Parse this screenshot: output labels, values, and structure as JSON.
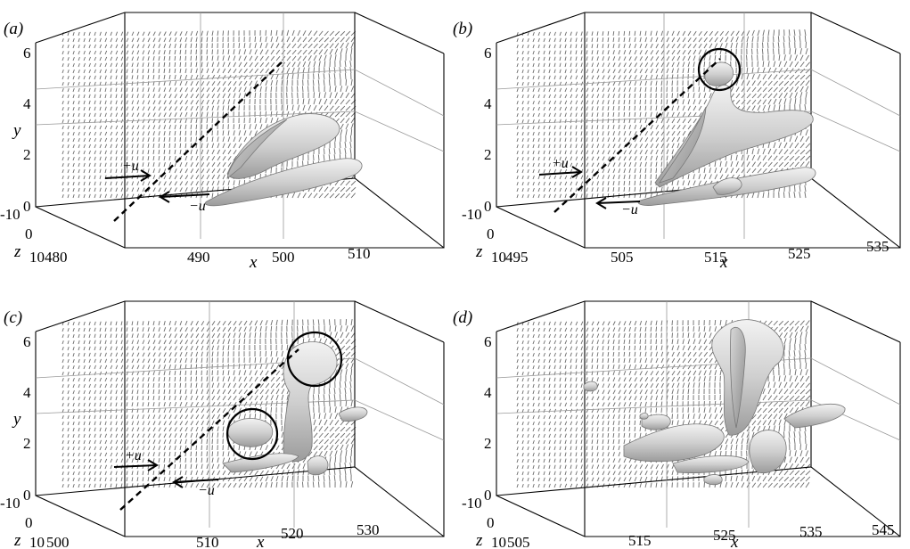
{
  "panels": [
    {
      "label": "(a)",
      "x_ticks": [
        "480",
        "490",
        "500",
        "510"
      ],
      "y_ticks": [
        "0",
        "2",
        "4",
        "6"
      ],
      "z_ticks": [
        "-10",
        "0",
        "10"
      ],
      "x_axis": "x",
      "y_axis": "y",
      "z_axis": "z",
      "arrow_labels": [
        "+u",
        "−u"
      ]
    },
    {
      "label": "(b)",
      "x_ticks": [
        "495",
        "505",
        "515",
        "525",
        "535"
      ],
      "y_ticks": [
        "0",
        "2",
        "4",
        "6"
      ],
      "z_ticks": [
        "-10",
        "0",
        "10"
      ],
      "x_axis": "x",
      "y_axis": "y",
      "z_axis": "z",
      "arrow_labels": [
        "+u",
        "−u"
      ]
    },
    {
      "label": "(c)",
      "x_ticks": [
        "500",
        "510",
        "520",
        "530"
      ],
      "y_ticks": [
        "0",
        "2",
        "4",
        "6"
      ],
      "z_ticks": [
        "-10",
        "0",
        "10"
      ],
      "x_axis": "x",
      "y_axis": "y",
      "z_axis": "z",
      "arrow_labels": [
        "+u",
        "−u"
      ]
    },
    {
      "label": "(d)",
      "x_ticks": [
        "505",
        "515",
        "525",
        "535",
        "545"
      ],
      "y_ticks": [
        "0",
        "2",
        "4",
        "6"
      ],
      "z_ticks": [
        "-10",
        "0",
        "10"
      ],
      "x_axis": "x",
      "y_axis": "y",
      "z_axis": "z",
      "arrow_labels": []
    }
  ]
}
